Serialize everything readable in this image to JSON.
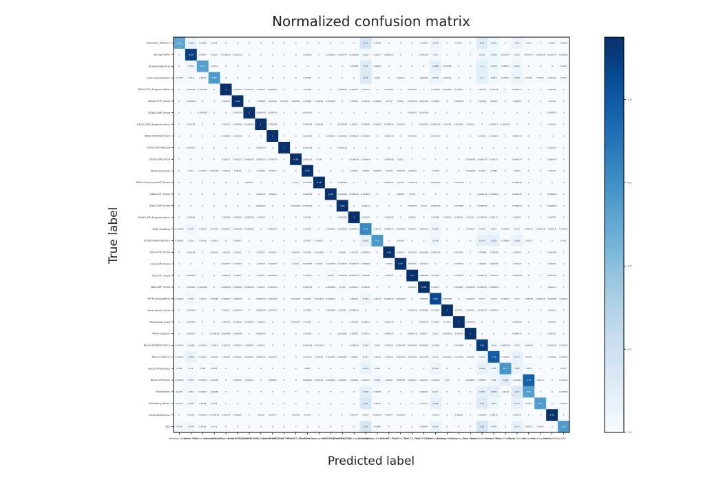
{
  "chart_data": {
    "type": "heatmap",
    "title": "Normalized confusion matrix",
    "xlabel": "Predicted label",
    "ylabel": "True label",
    "colormap": "Blues",
    "cmin": 0,
    "cmax": 0.95,
    "colorbar_ticks": [
      "0.0",
      "0.2",
      "0.4",
      "0.6",
      "0.8"
    ],
    "colorbar_tick_values": [
      0,
      0.2,
      0.4,
      0.6,
      0.8
    ],
    "labels": [
      "Backdoor_Malware",
      "BenignTraffic",
      "BrowserHijacking",
      "CommandInjection",
      "DDoS-ACK_Fragmentation",
      "DDoS-HTTP_Flood",
      "DDoS-ICMP_Flood",
      "DDoS-ICMP_Fragmentation",
      "DDoS-PSHACK_Flood",
      "DDoS-RSTFINFlood",
      "DDoS-SYN_Flood",
      "DDoS-SlowLoris",
      "DDoS-SynonymousIP_Flood",
      "DDoS-TCP_Flood",
      "DDoS-UDP_Flood",
      "DDoS-UDP_Fragmentation",
      "DNS_Spoofing",
      "DictionaryBruteForce",
      "DoS-HTTP_Flood",
      "DoS-SYN_Flood",
      "DoS-TCP_Flood",
      "DoS-UDP_Flood",
      "MITM-ArpSpoofing",
      "Mirai-greeth_flood",
      "Mirai-greip_flood",
      "Mirai-udpplain",
      "Recon-HostDiscovery",
      "Recon-OSScan",
      "Recon-PingSweep",
      "Recon-PortScan",
      "SqlInjection",
      "Uploading_Attack",
      "VulnerabilityScan",
      "XSS"
    ],
    "matrix": [
      [
        0.51,
        0.059,
        0.0059,
        0.007,
        0,
        0,
        0,
        0,
        0,
        0,
        0,
        0,
        0,
        0,
        0,
        0,
        0.17,
        0.0098,
        0,
        0,
        0,
        0.0059,
        0.049,
        0,
        0.0007,
        0,
        0.12,
        0.036,
        0,
        0.06,
        0.012,
        0,
        0.0021,
        0.0049
      ],
      [
        0,
        0.89,
        0.00044,
        0.0005,
        1.9e-05,
        1.9e-05,
        0,
        0,
        0,
        0,
        0,
        0.00028,
        0,
        1.9e-05,
        7.4e-05,
        5.6e-05,
        0.031,
        0.0017,
        3.7e-05,
        0,
        0,
        1.9e-05,
        0.02,
        0,
        0,
        0,
        0.031,
        0.038,
        7.4e-05,
        0.012,
        7.4e-05,
        1.9e-05,
        7.4e-05,
        3.7e-05
      ],
      [
        0,
        0.036,
        0.54,
        0.0011,
        0,
        0,
        0,
        0,
        0,
        0,
        0,
        0,
        0,
        0,
        0,
        0.00038,
        0.12,
        0.0063,
        0,
        0,
        0,
        0,
        0.088,
        0.00038,
        0,
        0,
        0.1,
        0.039,
        0.00075,
        0.043,
        0,
        0,
        0,
        0.0011
      ],
      [
        0.0049,
        0.013,
        0.0012,
        0.56,
        0,
        0,
        0,
        0,
        0,
        0,
        0,
        0.00041,
        0,
        0,
        0,
        0,
        0.14,
        0.007,
        0,
        0.00041,
        0,
        0.00082,
        0.059,
        0.00041,
        0,
        0,
        0.1,
        0.037,
        0.00041,
        0.055,
        0.0035,
        0.0012,
        0.00041,
        0.007
      ],
      [
        0,
        0.00019,
        1.9e-05,
        0,
        1,
        1.9e-05,
        1.9e-05,
        0.00037,
        3.7e-05,
        0,
        0,
        0.00019,
        0,
        0,
        2.9e-05,
        0.00045,
        0.00013,
        0,
        0.00048,
        0,
        3.7e-05,
        0,
        0.00048,
        5.6e-05,
        0.00025,
        0,
        0.00013,
        0.00013,
        0,
        3.7e-05,
        0,
        0,
        0.00028,
        0
      ],
      [
        0,
        7.6e-05,
        0,
        0,
        0.00015,
        0.98,
        0,
        0.00088,
        0.00046,
        0.00055,
        0.00055,
        0.00031,
        0.00036,
        7.6e-05,
        0,
        0.00055,
        0.00015,
        0.00055,
        0.013,
        0.0011,
        7.6e-05,
        7.6e-05,
        0.00023,
        0,
        7.6e-05,
        0,
        0.00094,
        0.0012,
        0,
        0.00062,
        0,
        0,
        0.0018,
        0
      ],
      [
        0,
        0,
        1.9e-05,
        0,
        0,
        1.9e-05,
        1,
        5.6e-05,
        7.5e-05,
        0,
        0,
        3.7e-05,
        0,
        0,
        0,
        0,
        0,
        0,
        0,
        0,
        3.7e-05,
        1.9e-05,
        0,
        0,
        0,
        0,
        0,
        0,
        0,
        0,
        0,
        0,
        1.9e-05,
        0
      ],
      [
        0,
        0.00015,
        0,
        0,
        0.00073,
        5.6e-05,
        5.6e-05,
        1,
        9.6e-05,
        0,
        0,
        9.3e-05,
        0.00032,
        0,
        3.7e-05,
        0.00011,
        0.00045,
        0.00019,
        1.5e-05,
        0.00025,
        0,
        1.9e-05,
        1.9e-05,
        0.00028,
        3.7e-05,
        0.00011,
        0,
        7.5e-05,
        3.7e-05,
        0,
        0,
        0,
        0.00043,
        0
      ],
      [
        0,
        0,
        0,
        0,
        3.7e-05,
        1.9e-05,
        0,
        0,
        1,
        0,
        0,
        5.6e-05,
        0,
        1.9e-05,
        5.6e-05,
        1.9e-05,
        1.9e-05,
        0,
        1.9e-05,
        0,
        0.00056,
        0,
        3.7e-05,
        0,
        0,
        0,
        0.00011,
        9.3e-05,
        0,
        1.9e-05,
        0,
        0,
        0,
        0
      ],
      [
        0,
        1.9e-05,
        0,
        0,
        0,
        0,
        0,
        1.9e-05,
        0,
        1,
        0,
        1.9e-05,
        0,
        0,
        1.9e-05,
        0,
        0,
        0,
        0,
        0,
        0,
        0,
        0,
        0,
        0,
        0,
        0,
        0,
        0,
        0,
        0,
        0,
        3.7e-05,
        0
      ],
      [
        0,
        0,
        0,
        0,
        0.00017,
        0.00017,
        1.9e-05,
        1.9e-05,
        7.5e-05,
        0,
        0.98,
        1.9e-05,
        0.004,
        0,
        0,
        1.9e-05,
        1.9e-05,
        0,
        5.6e-05,
        0.012,
        0,
        0,
        0,
        0,
        0,
        1.9e-05,
        1.9e-05,
        0.00011,
        0,
        3.7e-05,
        0,
        0,
        9.3e-05,
        0
      ],
      [
        0,
        0.011,
        0.00013,
        0.00028,
        0.00019,
        0.0024,
        0,
        0.00066,
        0.00019,
        0,
        0,
        0.96,
        0,
        0,
        0,
        0.00075,
        0.0036,
        0.00019,
        0.0019,
        0.00028,
        0.00019,
        0,
        0.0028,
        0,
        0,
        9.4e-05,
        0.0013,
        0.0085,
        0,
        0.0013,
        0,
        0,
        0.0037,
        0
      ],
      [
        0,
        0,
        0,
        0,
        0,
        0,
        0.00013,
        0,
        0,
        0,
        0.015,
        3.7e-05,
        0.98,
        0,
        9.3e-05,
        0,
        0,
        0,
        3.7e-05,
        0.0075,
        1.9e-05,
        0,
        1.9e-05,
        0,
        1.9e-05,
        0,
        0,
        0,
        0,
        9.3e-05,
        0,
        0,
        0,
        0
      ],
      [
        0,
        0,
        0,
        0,
        0,
        0,
        0,
        3.7e-05,
        0.00019,
        0,
        0,
        5.6e-05,
        0,
        0.99,
        2.9e-05,
        1.9e-05,
        3.7e-05,
        0,
        0,
        0.00051,
        0.013,
        0,
        0,
        0,
        0,
        0,
        1.9e-05,
        1.9e-05,
        0,
        9.3e-05,
        0,
        0,
        1.9e-05,
        0
      ],
      [
        0,
        0,
        0,
        0,
        0,
        0,
        0,
        1.9e-05,
        0,
        0,
        7.5e-05,
        1.9e-05,
        0,
        0,
        0.98,
        0,
        0.00013,
        0,
        0,
        0,
        7.5e-05,
        0.015,
        1.9e-05,
        0,
        5.6e-05,
        0,
        9.3e-05,
        0,
        0,
        1.9e-05,
        0,
        0,
        7.5e-05,
        0
      ],
      [
        0,
        0.00022,
        0,
        0,
        0.00056,
        3.7e-05,
        1.9e-05,
        0.00043,
        0,
        0,
        0,
        0.00031,
        0,
        0,
        5.9e-05,
        1,
        0.00024,
        0,
        5.6e-05,
        0,
        0.00011,
        0,
        0.00065,
        0.00019,
        0.00015,
        0.00011,
        7.4e-05,
        0.00017,
        0,
        0.00041,
        0,
        0,
        0.00032,
        0
      ],
      [
        0.00036,
        0.037,
        0.0016,
        0.00073,
        3.7e-05,
        5.6e-05,
        5.6e-05,
        0,
        3.7e-05,
        0,
        0,
        0.00017,
        0,
        1.9e-05,
        2.9e-05,
        7.5e-05,
        0.63,
        0.0019,
        7.5e-05,
        5.6e-05,
        0.00017,
        0.00028,
        0.044,
        0,
        0,
        0.00019,
        0.039,
        0.033,
        0.00019,
        0.016,
        0.00016,
        1.9e-05,
        0.00019,
        0.00037
      ],
      [
        0.00067,
        0.001,
        0.0019,
        0.0015,
        0,
        0.00067,
        0,
        0,
        0,
        0,
        0,
        0.00017,
        0.00017,
        0,
        0,
        0,
        0.091,
        0.57,
        0,
        0.00067,
        0,
        0,
        0.036,
        0,
        0,
        0,
        0.079,
        0.092,
        0.00084,
        0.066,
        0.0025,
        0,
        0,
        0.001
      ],
      [
        0,
        0.00018,
        0,
        0.00015,
        0.00036,
        0.0053,
        0,
        0.00037,
        0.00015,
        0,
        0.00033,
        0.00017,
        9.2e-05,
        0,
        0.00022,
        0.00037,
        9.2e-05,
        0,
        0.99,
        0.00037,
        0.00018,
        9.2e-05,
        9.2e-05,
        0,
        3.1e-05,
        0,
        0.00056,
        0.00058,
        0,
        0.00055,
        0,
        0,
        9.2e-05,
        0
      ],
      [
        0,
        0,
        0,
        0,
        3.7e-05,
        0.00054,
        0,
        0.00019,
        9.3e-05,
        0,
        0.026,
        9.3e-05,
        0.0034,
        1.9e-05,
        1.9e-05,
        7.4e-05,
        1.9e-05,
        0,
        0.0005,
        0.97,
        0.00035,
        0.00024,
        0,
        0,
        3.7e-05,
        0,
        0.00046,
        0.00028,
        0,
        0.00019,
        0,
        0,
        0.00024,
        0
      ],
      [
        0,
        3.7e-05,
        0,
        0,
        0.00019,
        0.00017,
        0,
        0.00011,
        9.3e-05,
        0,
        0,
        0.00019,
        0,
        0.028,
        1.9e-05,
        1.9e-05,
        0.00015,
        0,
        0.00019,
        0,
        0.97,
        1.9e-05,
        0.00017,
        0,
        3.7e-05,
        0,
        7.4e-05,
        0.00011,
        0,
        5.6e-05,
        0,
        0,
        3.4e-05,
        0
      ],
      [
        0,
        1.9e-05,
        1.9e-05,
        0,
        1.9e-05,
        9.3e-05,
        1.9e-05,
        0.00011,
        1.9e-05,
        0,
        0,
        7.4e-05,
        0,
        1.6e-05,
        0.016,
        3.7e-05,
        0.00019,
        0,
        0,
        0,
        0.00024,
        0.98,
        0.00017,
        0,
        3.7e-05,
        7.4e-05,
        9.3e-05,
        5.6e-05,
        0,
        0,
        0,
        0,
        0.00013,
        0
      ],
      [
        0.00022,
        0.037,
        0.0011,
        0.00036,
        1.9e-05,
        7.4e-05,
        0,
        3.4e-05,
        1.9e-05,
        0,
        3.7e-05,
        0.00017,
        1.9e-05,
        1.9e-05,
        0,
        0.00017,
        0.052,
        0.0013,
        7.4e-05,
        1.9e-05,
        0,
        0.00035,
        0.86,
        5.6e-05,
        0,
        0.00019,
        0.017,
        0.019,
        0.00013,
        0.011,
        0.00028,
        1.9e-05,
        7.4e-05,
        0.00032
      ],
      [
        0,
        1.9e-05,
        0,
        0,
        0.00017,
        1.9e-05,
        0,
        3.4e-05,
        1.9e-05,
        0,
        0,
        0.00015,
        0,
        1.9e-05,
        0.00013,
        1.9e-05,
        0,
        0,
        0,
        0,
        1.9e-05,
        1.9e-05,
        0.00011,
        1,
        0.0021,
        0.00011,
        3.7e-05,
        1.9e-05,
        0,
        0,
        0,
        0,
        0.00013,
        0
      ],
      [
        0,
        3.7e-05,
        0,
        0,
        0.00041,
        0.00015,
        1.9e-05,
        0.00032,
        0,
        0,
        3.7e-05,
        0.00017,
        0,
        0,
        0,
        0.00026,
        0.00011,
        0,
        7.5e-05,
        0,
        0,
        3.7e-05,
        0.00017,
        0.0016,
        1,
        3.7e-05,
        0,
        0,
        0,
        5.6e-05,
        0,
        0,
        0.00043,
        0
      ],
      [
        0,
        3.7e-05,
        0,
        1.9e-05,
        5.6e-05,
        9.3e-05,
        0,
        9.3e-05,
        0,
        0,
        0,
        0.00013,
        0,
        0,
        5.6e-05,
        0.00042,
        0.00021,
        0,
        3.7e-05,
        0,
        1.9e-05,
        0.00017,
        0.001,
        1.9e-05,
        0.00013,
        1,
        0,
        0,
        0,
        3.7e-05,
        0,
        0,
        0.00022,
        0
      ],
      [
        0.00037,
        0.0086,
        0.00062,
        0.0003,
        0.00015,
        7.4e-05,
        9.3e-05,
        0.00011,
        0,
        0,
        0,
        1.9e-05,
        2.9e-05,
        0,
        0,
        1.9e-05,
        0.032,
        0.002,
        0.00013,
        5.6e-05,
        9.3e-05,
        3.7e-05,
        0.0098,
        0,
        5.6e-05,
        0,
        0.91,
        0.016,
        7.4e-05,
        0.021,
        0.00024,
        0,
        3.7e-05,
        0.00035
      ],
      [
        0.00036,
        0.068,
        0.00054,
        0.00022,
        4e-05,
        0.00055,
        7e-06,
        4.2e-05,
        6.7e-05,
        0,
        0,
        0.00036,
        4e-05,
        4.2e-05,
        7e-06,
        9e-05,
        0.027,
        0.0033,
        0.00035,
        4.5e-05,
        4.5e-05,
        4.5e-05,
        0.016,
        4.2e-05,
        4.2e-05,
        0.00035,
        0.026,
        0.79,
        0.00029,
        0.071,
        0.0031,
        0,
        0.00035,
        0.00018
      ],
      [
        0.001,
        0.01,
        0.002,
        0.002,
        0,
        0,
        0,
        0,
        0,
        0,
        0,
        0.001,
        0,
        0,
        0,
        0,
        0.075,
        0.005,
        0,
        0,
        0,
        0,
        0.049,
        0,
        0,
        0,
        0.082,
        0.05,
        0.57,
        0.06,
        0.015,
        0,
        0,
        0.001
      ],
      [
        0.00053,
        0.037,
        0.00079,
        0.00056,
        0,
        0.00032,
        0.00016,
        0,
        0.00021,
        0,
        0,
        2.7e-05,
        0.00011,
        5.3e-05,
        9e-05,
        9e-05,
        0.00011,
        0.036,
        0.0039,
        0.00056,
        0.00053,
        0.00013,
        9e-05,
        0.02,
        0,
        2.7e-05,
        0.00037,
        0.04,
        0.094,
        0.00085,
        0.78,
        0.0013,
        0,
        0.00011
      ],
      [
        0.0033,
        0.019,
        0.00042,
        0.00083,
        0,
        0,
        0,
        0,
        0,
        0,
        0,
        0,
        0,
        0,
        0,
        0,
        0.097,
        0.0096,
        0,
        0,
        0,
        0.00042,
        0.027,
        0,
        0,
        0,
        0.081,
        0.089,
        0.0013,
        0.13,
        0.54,
        0,
        0,
        0.00083
      ],
      [
        0.0037,
        0.028,
        0.0018,
        0.013,
        0,
        0,
        0,
        0,
        0,
        0,
        0,
        0,
        0,
        0,
        0,
        0,
        0.15,
        0.0073,
        0,
        0,
        0,
        0.0018,
        0.086,
        0,
        0,
        0,
        0.12,
        0.037,
        0,
        0.073,
        0.0037,
        0.55,
        0,
        0.0055
      ],
      [
        0,
        0.0025,
        0.00018,
        5.3e-05,
        0.00029,
        0.00065,
        0,
        0.0012,
        0.00047,
        0,
        0.00041,
        0.0026,
        0,
        0,
        0,
        0.00075,
        0.0017,
        5.9e-05,
        0.00077,
        0.00059,
        0,
        0,
        0.0019,
        0,
        0.00012,
        0,
        0.00063,
        0.00075,
        0,
        0.00075,
        0,
        0,
        0.96,
        0
      ],
      [
        0.018,
        0.028,
        0.0018,
        0.011,
        0,
        0,
        0,
        0,
        0,
        0,
        0,
        0,
        0,
        0,
        0,
        0,
        0.15,
        0.0066,
        0,
        0,
        0,
        0.00057,
        0.059,
        0,
        0,
        0,
        0.16,
        0.036,
        0,
        0.071,
        0.0052,
        0.0023,
        0,
        0.56
      ]
    ]
  }
}
